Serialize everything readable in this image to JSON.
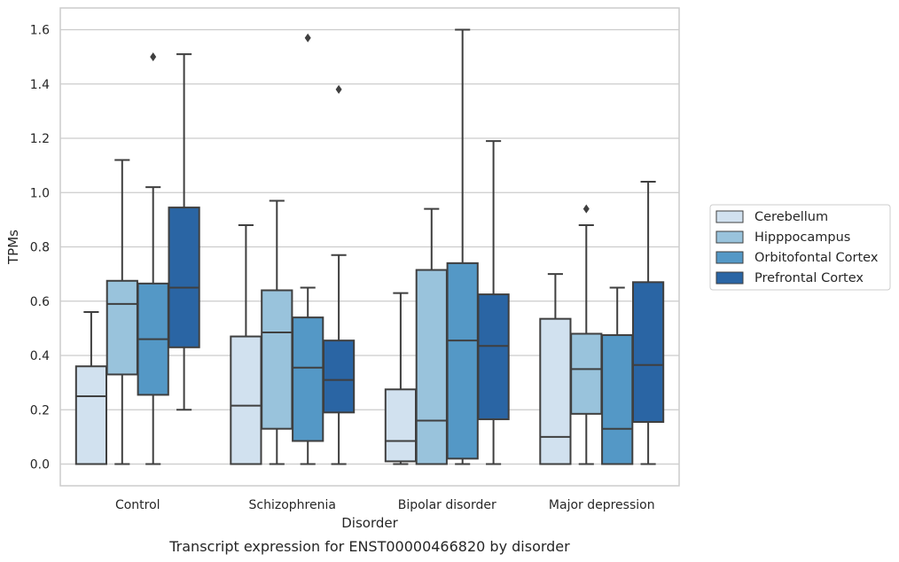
{
  "caption": "Transcript expression for ENST00000466820 by disorder",
  "chart_data": {
    "type": "box",
    "xlabel": "Disorder",
    "ylabel": "TPMs",
    "ylim": [
      -0.08,
      1.68
    ],
    "yticks": [
      "0.0",
      "0.2",
      "0.4",
      "0.6",
      "0.8",
      "1.0",
      "1.2",
      "1.4",
      "1.6"
    ],
    "categories": [
      "Control",
      "Schizophrenia",
      "Bipolar disorder",
      "Major depression"
    ],
    "grid": true,
    "legend_position": "right",
    "series": [
      {
        "name": "Cerebellum",
        "color": "#d1e1ef",
        "boxes": [
          {
            "whislo": 0.0,
            "q1": 0.0,
            "med": 0.25,
            "q3": 0.36,
            "whishi": 0.56,
            "fliers": []
          },
          {
            "whislo": 0.0,
            "q1": 0.0,
            "med": 0.215,
            "q3": 0.47,
            "whishi": 0.88,
            "fliers": []
          },
          {
            "whislo": 0.0,
            "q1": 0.01,
            "med": 0.085,
            "q3": 0.275,
            "whishi": 0.63,
            "fliers": []
          },
          {
            "whislo": 0.0,
            "q1": 0.0,
            "med": 0.1,
            "q3": 0.535,
            "whishi": 0.7,
            "fliers": []
          }
        ]
      },
      {
        "name": "Hipppocampus",
        "color": "#99c3dc",
        "boxes": [
          {
            "whislo": 0.0,
            "q1": 0.33,
            "med": 0.59,
            "q3": 0.675,
            "whishi": 1.12,
            "fliers": []
          },
          {
            "whislo": 0.0,
            "q1": 0.13,
            "med": 0.485,
            "q3": 0.64,
            "whishi": 0.97,
            "fliers": []
          },
          {
            "whislo": 0.0,
            "q1": 0.0,
            "med": 0.16,
            "q3": 0.715,
            "whishi": 0.94,
            "fliers": []
          },
          {
            "whislo": 0.0,
            "q1": 0.185,
            "med": 0.35,
            "q3": 0.48,
            "whishi": 0.88,
            "fliers": [
              0.94
            ]
          }
        ]
      },
      {
        "name": "Orbitofontal Cortex",
        "color": "#5498c6",
        "boxes": [
          {
            "whislo": 0.0,
            "q1": 0.255,
            "med": 0.46,
            "q3": 0.665,
            "whishi": 1.02,
            "fliers": [
              1.5
            ]
          },
          {
            "whislo": 0.0,
            "q1": 0.085,
            "med": 0.355,
            "q3": 0.54,
            "whishi": 0.65,
            "fliers": [
              1.57
            ]
          },
          {
            "whislo": 0.0,
            "q1": 0.02,
            "med": 0.455,
            "q3": 0.74,
            "whishi": 1.6,
            "fliers": []
          },
          {
            "whislo": 0.0,
            "q1": 0.0,
            "med": 0.13,
            "q3": 0.475,
            "whishi": 0.65,
            "fliers": []
          }
        ]
      },
      {
        "name": "Prefrontal Cortex",
        "color": "#2a65a4",
        "boxes": [
          {
            "whislo": 0.2,
            "q1": 0.43,
            "med": 0.65,
            "q3": 0.945,
            "whishi": 1.51,
            "fliers": []
          },
          {
            "whislo": 0.0,
            "q1": 0.19,
            "med": 0.31,
            "q3": 0.455,
            "whishi": 0.77,
            "fliers": [
              1.38
            ]
          },
          {
            "whislo": 0.0,
            "q1": 0.165,
            "med": 0.435,
            "q3": 0.625,
            "whishi": 1.19,
            "fliers": []
          },
          {
            "whislo": 0.0,
            "q1": 0.155,
            "med": 0.365,
            "q3": 0.67,
            "whishi": 1.04,
            "fliers": []
          }
        ]
      }
    ]
  }
}
